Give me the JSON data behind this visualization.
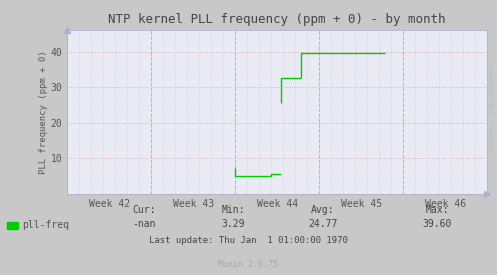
{
  "title": "NTP kernel PLL frequency (ppm + 0) - by month",
  "ylabel": "PLL frequency (ppm + 0)",
  "background_color": "#c8c8c8",
  "plot_background": "#eaeaf4",
  "grid_color_blue": "#b0b0d0",
  "grid_color_red": "#d08080",
  "line_color": "#00cc00",
  "yticks": [
    10,
    20,
    30,
    40
  ],
  "ylim": [
    0,
    46
  ],
  "xlim": [
    0,
    35
  ],
  "xtick_labels": [
    "Week 42",
    "Week 43",
    "Week 44",
    "Week 45",
    "Week 46"
  ],
  "xtick_positions": [
    3.5,
    10.5,
    17.5,
    24.5,
    31.5
  ],
  "week_vlines": [
    0,
    7,
    14,
    21,
    28,
    35
  ],
  "segments": [
    {
      "x": [
        14.0,
        14.0,
        16.8
      ],
      "y": [
        7.2,
        5.0,
        5.0
      ]
    },
    {
      "x": [
        16.8,
        17.0,
        17.0,
        17.8
      ],
      "y": [
        5.0,
        5.0,
        5.5,
        5.5
      ]
    },
    {
      "x": [
        17.8,
        17.8,
        19.5
      ],
      "y": [
        25.5,
        32.5,
        32.5
      ]
    },
    {
      "x": [
        19.5,
        19.5,
        26.5
      ],
      "y": [
        32.5,
        39.5,
        39.5
      ]
    }
  ],
  "legend_label": "pll-freq",
  "legend_color": "#00cc00",
  "stats_cur": "-nan",
  "stats_min": "3.29",
  "stats_avg": "24.77",
  "stats_max": "39.60",
  "last_update": "Last update: Thu Jan  1 01:00:00 1970",
  "munin_text": "Munin 2.0.75",
  "watermark": "RRDTOOL / TOBI OETIKER",
  "title_color": "#444444",
  "axis_color": "#555555",
  "stats_label_color": "#444444",
  "munin_color": "#aaaaaa"
}
